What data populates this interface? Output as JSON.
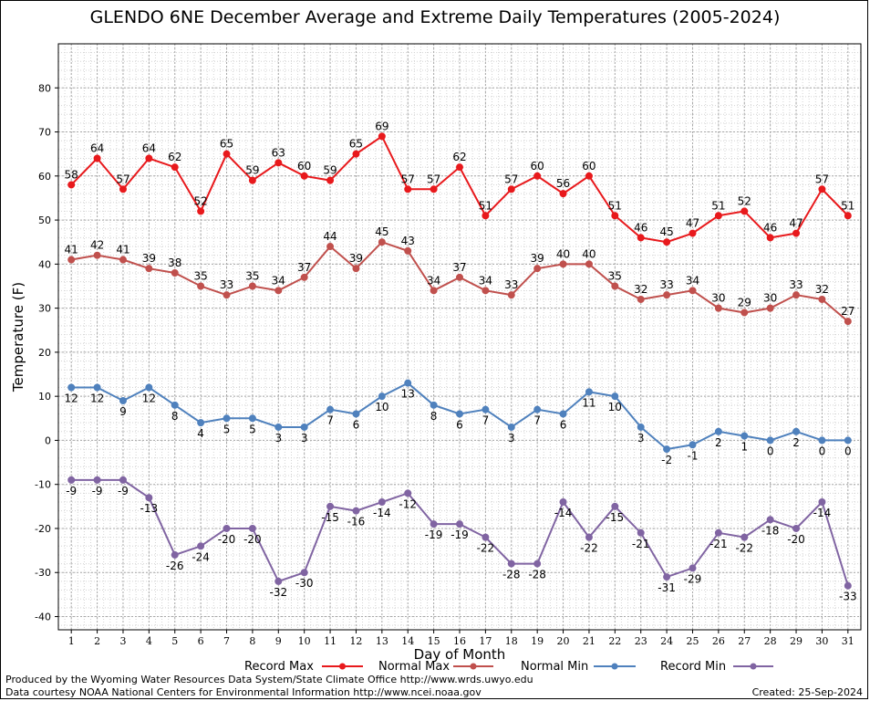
{
  "header": {
    "title": "GLENDO 6NE December Average and Extreme Daily Temperatures (2005-2024)"
  },
  "footer": {
    "produced_by": "Produced by the Wyoming Water Resources Data System/State Climate Office http://www.wrds.uwyo.edu",
    "courtesy": "Data courtesy NOAA National Centers for Environmental Information http://www.ncei.noaa.gov",
    "created": "Created: 25-Sep-2024"
  },
  "chart_data": {
    "type": "line",
    "title": "GLENDO 6NE December Average and Extreme Daily Temperatures (2005-2024)",
    "xlabel": "Day of Month",
    "ylabel": "Temperature (F)",
    "xlim": [
      0.5,
      31.5
    ],
    "ylim": [
      -43,
      90
    ],
    "yticks": [
      -40,
      -30,
      -20,
      -10,
      0,
      10,
      20,
      30,
      40,
      50,
      60,
      70,
      80
    ],
    "x": [
      1,
      2,
      3,
      4,
      5,
      6,
      7,
      8,
      9,
      10,
      11,
      12,
      13,
      14,
      15,
      16,
      17,
      18,
      19,
      20,
      21,
      22,
      23,
      24,
      25,
      26,
      27,
      28,
      29,
      30,
      31
    ],
    "grid": true,
    "legend_position": "bottom",
    "series": [
      {
        "name": "Record Max",
        "color": "#e8191c",
        "values": [
          58,
          64,
          57,
          64,
          62,
          52,
          65,
          59,
          63,
          60,
          59,
          65,
          69,
          57,
          57,
          62,
          51,
          57,
          60,
          56,
          60,
          51,
          46,
          45,
          47,
          51,
          52,
          46,
          47,
          57,
          51
        ]
      },
      {
        "name": "Normal Max",
        "color": "#c0504d",
        "values": [
          41,
          42,
          41,
          39,
          38,
          35,
          33,
          35,
          34,
          37,
          44,
          39,
          45,
          43,
          34,
          37,
          34,
          33,
          39,
          40,
          40,
          35,
          32,
          33,
          34,
          30,
          29,
          30,
          33,
          32,
          27
        ]
      },
      {
        "name": "Normal Min",
        "color": "#4f81bd",
        "values": [
          12,
          12,
          9,
          12,
          8,
          4,
          5,
          5,
          3,
          3,
          7,
          6,
          10,
          13,
          8,
          6,
          7,
          3,
          7,
          6,
          11,
          10,
          3,
          -2,
          -1,
          2,
          1,
          0,
          2,
          0,
          0
        ]
      },
      {
        "name": "Record Min",
        "color": "#8064a2",
        "values": [
          -9,
          -9,
          -9,
          -13,
          -26,
          -24,
          -20,
          -20,
          -32,
          -30,
          -15,
          -16,
          -14,
          -12,
          -19,
          -19,
          -22,
          -28,
          -28,
          -14,
          -22,
          -15,
          -21,
          -31,
          -29,
          -21,
          -22,
          -18,
          -20,
          -14,
          -33
        ]
      }
    ]
  }
}
